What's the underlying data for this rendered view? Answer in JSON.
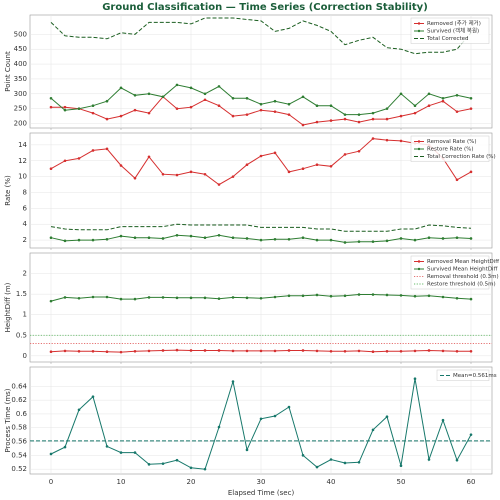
{
  "title": "Ground Classification — Time Series (Correction Stability)",
  "chart_data": [
    {
      "type": "line",
      "ylabel": "Point Count",
      "x": [
        0,
        2,
        4,
        6,
        8,
        10,
        12,
        14,
        16,
        18,
        20,
        22,
        24,
        26,
        28,
        30,
        32,
        34,
        36,
        38,
        40,
        42,
        44,
        46,
        48,
        50,
        52,
        54,
        56,
        58,
        60
      ],
      "xlim": [
        -3,
        63
      ],
      "xticks": [
        0,
        10,
        20,
        30,
        40,
        50,
        60
      ],
      "ylim": [
        185,
        565
      ],
      "yticks": [
        200,
        250,
        300,
        350,
        400,
        450,
        500
      ],
      "grid": true,
      "legend": "upper right",
      "series": [
        {
          "name": "Removed (추가 제거)",
          "color": "#d62f2f",
          "linestyle": "solid",
          "marker": "o",
          "values": [
            255,
            255,
            250,
            235,
            215,
            225,
            245,
            235,
            290,
            250,
            255,
            280,
            260,
            225,
            230,
            245,
            240,
            230,
            195,
            205,
            210,
            215,
            205,
            215,
            215,
            225,
            235,
            260,
            275,
            240,
            250
          ]
        },
        {
          "name": "Survived (객체 복원)",
          "color": "#2e7d32",
          "linestyle": "solid",
          "marker": "o",
          "values": [
            285,
            245,
            250,
            260,
            275,
            320,
            295,
            300,
            290,
            330,
            320,
            300,
            325,
            285,
            285,
            265,
            275,
            265,
            290,
            260,
            260,
            230,
            230,
            235,
            250,
            300,
            260,
            300,
            285,
            295,
            285
          ]
        },
        {
          "name": "Total Corrected",
          "color": "#1b5e20",
          "linestyle": "dashed",
          "marker": "none",
          "values": [
            540,
            495,
            490,
            490,
            485,
            505,
            500,
            540,
            540,
            540,
            535,
            555,
            555,
            555,
            550,
            545,
            510,
            520,
            545,
            530,
            510,
            465,
            480,
            490,
            455,
            450,
            435,
            440,
            440,
            450,
            505
          ]
        }
      ]
    },
    {
      "type": "line",
      "ylabel": "Rate (%)",
      "x": [
        0,
        2,
        4,
        6,
        8,
        10,
        12,
        14,
        16,
        18,
        20,
        22,
        24,
        26,
        28,
        30,
        32,
        34,
        36,
        38,
        40,
        42,
        44,
        46,
        48,
        50,
        52,
        54,
        56,
        58,
        60
      ],
      "xlim": [
        -3,
        63
      ],
      "xticks": [
        0,
        10,
        20,
        30,
        40,
        50,
        60
      ],
      "ylim": [
        1,
        15.5
      ],
      "yticks": [
        2,
        4,
        6,
        8,
        10,
        12,
        14
      ],
      "grid": true,
      "legend": "upper right",
      "series": [
        {
          "name": "Removal Rate (%)",
          "color": "#d62f2f",
          "linestyle": "solid",
          "marker": "o",
          "values": [
            11.0,
            12.0,
            12.3,
            13.3,
            13.5,
            11.4,
            9.8,
            12.5,
            10.3,
            10.2,
            10.6,
            10.3,
            9.0,
            10.0,
            11.5,
            12.6,
            13.0,
            10.6,
            11.0,
            11.5,
            11.3,
            12.8,
            13.2,
            14.8,
            14.6,
            14.5,
            14.2,
            14.0,
            12.3,
            9.6,
            10.6
          ]
        },
        {
          "name": "Restore Rate (%)",
          "color": "#2e7d32",
          "linestyle": "solid",
          "marker": "o",
          "values": [
            2.3,
            1.9,
            2.0,
            2.0,
            2.1,
            2.5,
            2.3,
            2.3,
            2.2,
            2.6,
            2.5,
            2.3,
            2.6,
            2.3,
            2.2,
            2.0,
            2.1,
            2.1,
            2.3,
            2.0,
            2.0,
            1.7,
            1.8,
            1.8,
            1.9,
            2.2,
            2.0,
            2.3,
            2.2,
            2.3,
            2.2
          ]
        },
        {
          "name": "Total Correction Rate (%)",
          "color": "#1b5e20",
          "linestyle": "dashed",
          "marker": "none",
          "values": [
            3.7,
            3.4,
            3.3,
            3.3,
            3.3,
            3.7,
            3.7,
            3.7,
            3.7,
            4.0,
            3.9,
            3.9,
            3.9,
            3.9,
            3.9,
            3.6,
            3.6,
            3.6,
            3.6,
            3.4,
            3.4,
            3.1,
            3.1,
            3.1,
            3.1,
            3.4,
            3.4,
            3.9,
            3.8,
            3.6,
            3.5
          ]
        }
      ]
    },
    {
      "type": "line",
      "ylabel": "HeightDiff (m)",
      "x": [
        0,
        2,
        4,
        6,
        8,
        10,
        12,
        14,
        16,
        18,
        20,
        22,
        24,
        26,
        28,
        30,
        32,
        34,
        36,
        38,
        40,
        42,
        44,
        46,
        48,
        50,
        52,
        54,
        56,
        58,
        60
      ],
      "xlim": [
        -3,
        63
      ],
      "xticks": [
        0,
        10,
        20,
        30,
        40,
        50,
        60
      ],
      "ylim": [
        -0.15,
        2.5
      ],
      "yticks": [
        0.0,
        0.5,
        1.0,
        1.5,
        2.0
      ],
      "grid": true,
      "legend": "upper right",
      "series": [
        {
          "name": "Removed Mean HeightDiff",
          "color": "#d62f2f",
          "linestyle": "solid",
          "marker": "o",
          "values": [
            0.1,
            0.12,
            0.11,
            0.11,
            0.1,
            0.09,
            0.11,
            0.12,
            0.13,
            0.14,
            0.13,
            0.13,
            0.13,
            0.12,
            0.12,
            0.12,
            0.12,
            0.13,
            0.13,
            0.12,
            0.11,
            0.11,
            0.12,
            0.1,
            0.11,
            0.11,
            0.12,
            0.13,
            0.12,
            0.11,
            0.11
          ]
        },
        {
          "name": "Survived Mean HeightDiff",
          "color": "#2e7d32",
          "linestyle": "solid",
          "marker": "o",
          "values": [
            1.33,
            1.42,
            1.4,
            1.43,
            1.43,
            1.38,
            1.38,
            1.42,
            1.42,
            1.41,
            1.41,
            1.41,
            1.39,
            1.42,
            1.41,
            1.4,
            1.43,
            1.46,
            1.46,
            1.48,
            1.45,
            1.46,
            1.49,
            1.49,
            1.48,
            1.47,
            1.45,
            1.46,
            1.43,
            1.4,
            1.38
          ]
        }
      ],
      "hlines": [
        {
          "name": "Removal threshold (0.3m)",
          "value": 0.3,
          "color": "#e57373",
          "linestyle": "dotted"
        },
        {
          "name": "Restore threshold (0.5m)",
          "value": 0.5,
          "color": "#66bb6a",
          "linestyle": "dotted"
        }
      ]
    },
    {
      "type": "line",
      "ylabel": "Process Time (ms)",
      "xlabel": "Elapsed Time (sec)",
      "x": [
        0,
        2,
        4,
        6,
        8,
        10,
        12,
        14,
        16,
        18,
        20,
        22,
        24,
        26,
        28,
        30,
        32,
        34,
        36,
        38,
        40,
        42,
        44,
        46,
        48,
        50,
        52,
        54,
        56,
        58,
        60
      ],
      "xlim": [
        -3,
        63
      ],
      "xticks": [
        0,
        10,
        20,
        30,
        40,
        50,
        60
      ],
      "ylim": [
        0.513,
        0.668
      ],
      "yticks": [
        0.52,
        0.54,
        0.56,
        0.58,
        0.6,
        0.62,
        0.64
      ],
      "grid": true,
      "legend": "upper right",
      "series": [
        {
          "color": "#17786b",
          "linestyle": "solid",
          "marker": "o",
          "values": [
            0.542,
            0.552,
            0.606,
            0.625,
            0.553,
            0.544,
            0.544,
            0.527,
            0.528,
            0.533,
            0.522,
            0.52,
            0.581,
            0.647,
            0.548,
            0.593,
            0.597,
            0.61,
            0.54,
            0.523,
            0.534,
            0.529,
            0.53,
            0.577,
            0.596,
            0.525,
            0.651,
            0.534,
            0.591,
            0.533,
            0.57
          ]
        }
      ],
      "hlines": [
        {
          "name": "Mean=0.561ms",
          "value": 0.561,
          "color": "#17786b",
          "linestyle": "dashed"
        }
      ]
    }
  ]
}
